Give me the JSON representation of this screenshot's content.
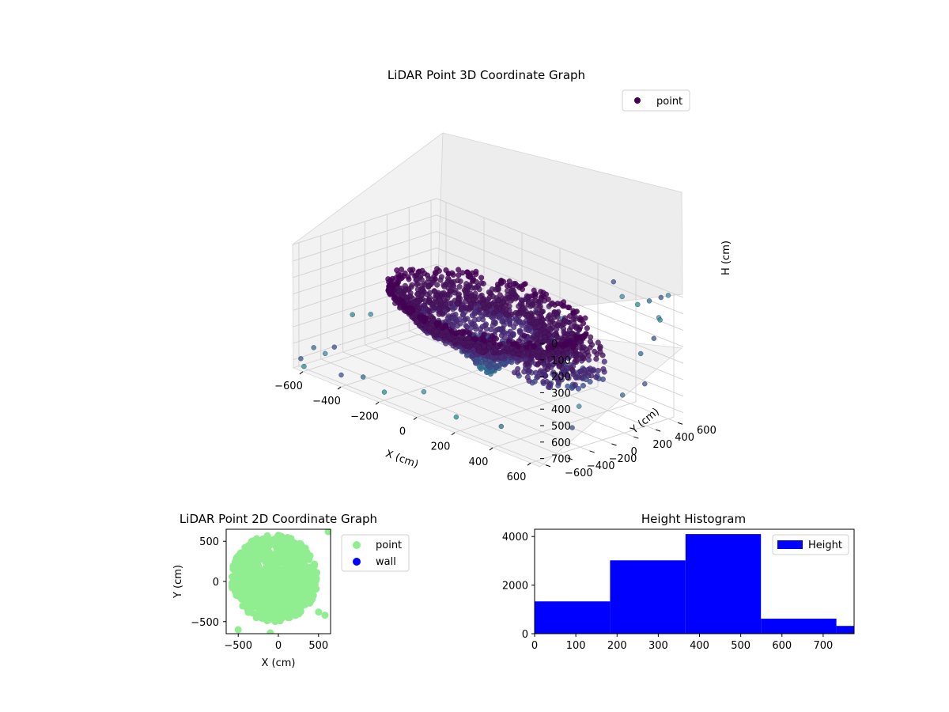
{
  "charts": [
    {
      "type": "scatter3d",
      "title": "LiDAR Point 3D Coordinate Graph",
      "xlabel": "X (cm)",
      "ylabel": "Y (cm)",
      "zlabel": "H (cm)",
      "x_ticks": [
        -600,
        -400,
        -200,
        0,
        200,
        400,
        600
      ],
      "y_ticks": [
        -600,
        -400,
        -200,
        0,
        200,
        400,
        600
      ],
      "z_ticks": [
        0,
        100,
        200,
        300,
        400,
        500,
        600,
        700
      ],
      "x_tick_labels": [
        "−600",
        "−400",
        "−200",
        "0",
        "200",
        "400",
        "600"
      ],
      "y_tick_labels": [
        "−600",
        "−400",
        "−200",
        "0",
        "200",
        "400",
        "600"
      ],
      "z_tick_labels": [
        "0",
        "100",
        "200",
        "300",
        "400",
        "500",
        "600",
        "700"
      ],
      "z_inverted": true,
      "colormap": "viridis",
      "legend": {
        "position": "top-right",
        "entries": [
          {
            "label": "point",
            "color": "#440154"
          }
        ]
      },
      "series": [
        {
          "name": "point",
          "description_of_shape": "dense bowl of points centered near the origin, heights roughly 150-600 cm, plus sparse outlier points",
          "sample_points": [
            {
              "x": 0,
              "y": 0,
              "h": 600
            },
            {
              "x": -400,
              "y": 100,
              "h": 300
            },
            {
              "x": 400,
              "y": 0,
              "h": 300
            },
            {
              "x": 0,
              "y": 450,
              "h": 150
            },
            {
              "x": -300,
              "y": -300,
              "h": 300
            },
            {
              "x": 300,
              "y": 300,
              "h": 250
            },
            {
              "x": 600,
              "y": 600,
              "h": 0
            },
            {
              "x": -650,
              "y": -600,
              "h": 700
            }
          ]
        }
      ]
    },
    {
      "type": "scatter",
      "title": "LiDAR Point 2D Coordinate Graph",
      "xlabel": "X (cm)",
      "ylabel": "Y (cm)",
      "xlim": [
        -650,
        650
      ],
      "ylim": [
        -650,
        650
      ],
      "x_ticks": [
        -500,
        0,
        500
      ],
      "y_ticks": [
        -500,
        0,
        500
      ],
      "x_tick_labels": [
        "−500",
        "0",
        "500"
      ],
      "y_tick_labels": [
        "−500",
        "0",
        "500"
      ],
      "legend": {
        "position": "outside-right",
        "entries": [
          {
            "label": "point",
            "color": "#90ee90"
          },
          {
            "label": "wall",
            "color": "#0000ff"
          }
        ]
      },
      "series": [
        {
          "name": "point",
          "color": "#90ee90",
          "description_of_shape": "dense disc of points from about x -580 to 500, y -520 to 640",
          "sample_points": [
            {
              "x": -500,
              "y": -600
            },
            {
              "x": 620,
              "y": 620
            },
            {
              "x": 580,
              "y": -420
            },
            {
              "x": 500,
              "y": -380
            },
            {
              "x": -100,
              "y": -640
            },
            {
              "x": 300,
              "y": 180
            }
          ]
        },
        {
          "name": "wall",
          "color": "#0000ff",
          "sample_points": []
        }
      ]
    },
    {
      "type": "bar",
      "subtype": "histogram",
      "title": "Height Histogram",
      "xlabel": "",
      "ylabel": "",
      "xlim": [
        0,
        775
      ],
      "ylim": [
        0,
        4300
      ],
      "x_ticks": [
        0,
        100,
        200,
        300,
        400,
        500,
        600,
        700
      ],
      "y_ticks": [
        0,
        2000,
        4000
      ],
      "bar_color": "#0000ff",
      "legend": {
        "position": "top-right",
        "entries": [
          {
            "label": "Height",
            "color": "#0000ff"
          }
        ]
      },
      "bins": [
        {
          "start": 0,
          "end": 183,
          "count": 1330
        },
        {
          "start": 183,
          "end": 366,
          "count": 3020
        },
        {
          "start": 366,
          "end": 549,
          "count": 4100
        },
        {
          "start": 549,
          "end": 732,
          "count": 620
        },
        {
          "start": 732,
          "end": 775,
          "count": 320
        }
      ]
    }
  ]
}
